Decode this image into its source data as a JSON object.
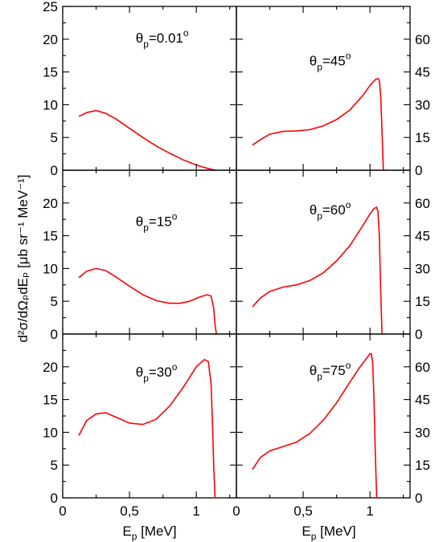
{
  "chart_data": {
    "type": "line",
    "curve_color": "#ff0000",
    "xlabel": {
      "main": "E",
      "sub": "p",
      "rest": " [MeV]"
    },
    "ylabel": "d²σ/dΩₚdEₚ [μb sr⁻¹ MeV⁻¹]",
    "xlim": [
      0,
      1.3
    ],
    "x_ticks": [
      {
        "v": 0,
        "label": "0"
      },
      {
        "v": 0.5,
        "label": "0,5"
      },
      {
        "v": 1.0,
        "label": "1"
      }
    ],
    "panels": [
      {
        "id": "theta-0.01",
        "label": {
          "pre": "θ",
          "sub": "p",
          "mid": "=0.01",
          "sup": "o"
        },
        "axis_side": "left",
        "ylim": [
          0,
          25
        ],
        "y_ticks": [
          0,
          5,
          10,
          15,
          20,
          25
        ],
        "x": [
          0.12,
          0.18,
          0.25,
          0.32,
          0.4,
          0.5,
          0.6,
          0.7,
          0.8,
          0.9,
          1.0,
          1.08,
          1.12,
          1.15
        ],
        "y": [
          8.2,
          8.8,
          9.1,
          8.7,
          7.8,
          6.4,
          5.0,
          3.7,
          2.6,
          1.6,
          0.8,
          0.3,
          0.1,
          0.0
        ]
      },
      {
        "id": "theta-45",
        "label": {
          "pre": "θ",
          "sub": "p",
          "mid": "=45",
          "sup": "o"
        },
        "axis_side": "right",
        "ylim": [
          0,
          75
        ],
        "y_ticks": [
          0,
          15,
          30,
          45,
          60
        ],
        "x": [
          0.12,
          0.18,
          0.25,
          0.35,
          0.45,
          0.55,
          0.65,
          0.75,
          0.85,
          0.95,
          1.0,
          1.04,
          1.06,
          1.07,
          1.08,
          1.09,
          1.1
        ],
        "y": [
          11.5,
          14.0,
          16.5,
          17.8,
          18.0,
          18.6,
          20.3,
          23.2,
          27.6,
          34.5,
          38.8,
          41.5,
          42.0,
          41.0,
          34.0,
          18.0,
          0.0
        ]
      },
      {
        "id": "theta-15",
        "label": {
          "pre": "θ",
          "sub": "p",
          "mid": "=15",
          "sup": "o"
        },
        "axis_side": "left",
        "ylim": [
          0,
          25
        ],
        "y_ticks": [
          0,
          5,
          10,
          15,
          20
        ],
        "x": [
          0.12,
          0.18,
          0.25,
          0.32,
          0.4,
          0.5,
          0.6,
          0.7,
          0.8,
          0.88,
          0.95,
          1.02,
          1.08,
          1.11,
          1.13,
          1.14,
          1.15
        ],
        "y": [
          8.6,
          9.6,
          10.0,
          9.7,
          8.7,
          7.3,
          6.0,
          5.1,
          4.7,
          4.7,
          5.0,
          5.6,
          6.0,
          5.8,
          4.0,
          1.5,
          0.0
        ]
      },
      {
        "id": "theta-60",
        "label": {
          "pre": "θ",
          "sub": "p",
          "mid": "=60",
          "sup": "o"
        },
        "axis_side": "right",
        "ylim": [
          0,
          75
        ],
        "y_ticks": [
          0,
          15,
          30,
          45,
          60
        ],
        "x": [
          0.12,
          0.18,
          0.25,
          0.35,
          0.45,
          0.55,
          0.65,
          0.75,
          0.85,
          0.95,
          1.0,
          1.03,
          1.05,
          1.06,
          1.07,
          1.08,
          1.09
        ],
        "y": [
          12.5,
          16.5,
          19.5,
          21.5,
          22.5,
          24.5,
          28.0,
          33.5,
          40.5,
          50.0,
          55.0,
          57.5,
          58.0,
          56.0,
          45.0,
          20.0,
          0.0
        ]
      },
      {
        "id": "theta-30",
        "label": {
          "pre": "θ",
          "sub": "p",
          "mid": "=30",
          "sup": "o"
        },
        "axis_side": "left",
        "ylim": [
          0,
          25
        ],
        "y_ticks": [
          0,
          5,
          10,
          15,
          20
        ],
        "x": [
          0.12,
          0.18,
          0.25,
          0.32,
          0.4,
          0.5,
          0.6,
          0.7,
          0.8,
          0.9,
          1.0,
          1.06,
          1.09,
          1.11,
          1.12,
          1.13,
          1.14
        ],
        "y": [
          9.5,
          11.8,
          12.8,
          13.0,
          12.3,
          11.4,
          11.2,
          12.0,
          14.0,
          16.8,
          20.0,
          21.1,
          20.8,
          17.5,
          12.0,
          5.0,
          0.0
        ]
      },
      {
        "id": "theta-75",
        "label": {
          "pre": "θ",
          "sub": "p",
          "mid": "=75",
          "sup": "o"
        },
        "axis_side": "right",
        "ylim": [
          0,
          75
        ],
        "y_ticks": [
          0,
          15,
          30,
          45,
          60
        ],
        "x": [
          0.12,
          0.18,
          0.25,
          0.35,
          0.45,
          0.55,
          0.65,
          0.75,
          0.85,
          0.92,
          0.97,
          1.0,
          1.01,
          1.02,
          1.03,
          1.04,
          1.05
        ],
        "y": [
          13.0,
          18.5,
          21.5,
          23.5,
          25.5,
          29.5,
          35.5,
          43.5,
          53.0,
          59.5,
          63.5,
          66.0,
          66.0,
          62.0,
          45.0,
          20.0,
          0.0
        ]
      }
    ]
  }
}
